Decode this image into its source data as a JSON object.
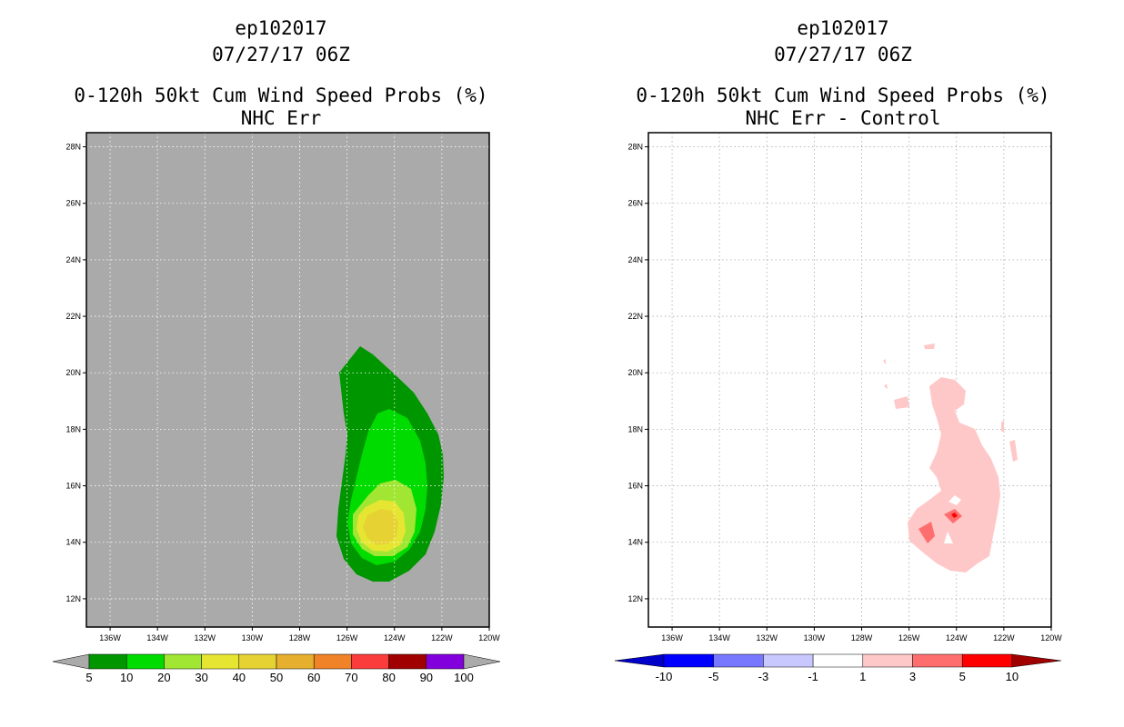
{
  "panels": [
    {
      "storm_id": "ep102017",
      "date": "07/27/17 06Z",
      "product": "0-120h 50kt Cum Wind Speed Probs (%)",
      "subtitle": "NHC Err"
    },
    {
      "storm_id": "ep102017",
      "date": "07/27/17 06Z",
      "product": "0-120h 50kt Cum Wind Speed Probs (%)",
      "subtitle": "NHC Err - Control"
    }
  ],
  "chart_data": [
    {
      "type": "heatmap",
      "title": "0-120h 50kt Cum Wind Speed Probs (%)",
      "subtitle": "NHC Err",
      "x_tick_labels": [
        "136W",
        "134W",
        "132W",
        "130W",
        "128W",
        "126W",
        "124W",
        "122W",
        "120W"
      ],
      "y_tick_labels": [
        "12N",
        "14N",
        "16N",
        "18N",
        "20N",
        "22N",
        "24N",
        "26N",
        "28N"
      ],
      "xlim": [
        -137,
        -120
      ],
      "ylim": [
        11,
        28.5
      ],
      "grid": true,
      "background_color": "#aaaaaa",
      "colorbar_labels": [
        "5",
        "10",
        "20",
        "30",
        "40",
        "50",
        "60",
        "70",
        "80",
        "90",
        "100"
      ],
      "colorbar_colors": [
        "#009600",
        "#00dc00",
        "#a0e632",
        "#e6e632",
        "#e6d232",
        "#e6af2d",
        "#f08228",
        "#fa3c3c",
        "#a00000",
        "#8200dc"
      ]
    },
    {
      "type": "heatmap",
      "title": "0-120h 50kt Cum Wind Speed Probs (%)",
      "subtitle": "NHC Err - Control",
      "x_tick_labels": [
        "136W",
        "134W",
        "132W",
        "130W",
        "128W",
        "126W",
        "124W",
        "122W",
        "120W"
      ],
      "y_tick_labels": [
        "12N",
        "14N",
        "16N",
        "18N",
        "20N",
        "22N",
        "24N",
        "26N",
        "28N"
      ],
      "xlim": [
        -137,
        -120
      ],
      "ylim": [
        11,
        28.5
      ],
      "grid": true,
      "background_color": "#ffffff",
      "colorbar_labels": [
        "-10",
        "-5",
        "-3",
        "-1",
        "1",
        "3",
        "5",
        "10"
      ],
      "colorbar_colors": [
        "#0000c8",
        "#0000ff",
        "#7878ff",
        "#c8c8ff",
        "#ffffff",
        "#ffc8c8",
        "#ff6e6e",
        "#ff0000",
        "#a00000"
      ]
    }
  ]
}
